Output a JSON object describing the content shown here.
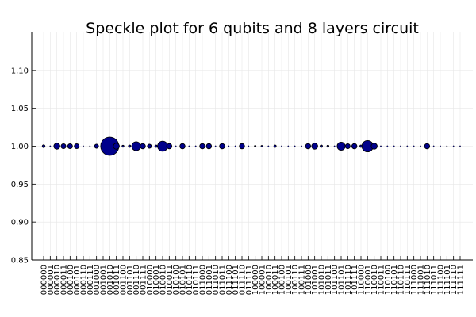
{
  "chart_data": {
    "type": "scatter",
    "title": "Speckle plot for 6 qubits and 8 layers circuit",
    "xlabel": "",
    "ylabel": "",
    "ylim": [
      0.85,
      1.15
    ],
    "yticks": [
      "0.85",
      "0.90",
      "0.95",
      "1.00",
      "1.05",
      "1.10"
    ],
    "ytick_values": [
      0.85,
      0.9,
      0.95,
      1.0,
      1.05,
      1.1
    ],
    "grid": true,
    "legend": "none",
    "marker_color": "#00008b",
    "marker_edge_color": "#000000",
    "categories": [
      "000000",
      "000001",
      "000010",
      "000011",
      "000100",
      "000101",
      "000110",
      "000111",
      "001000",
      "001001",
      "001010",
      "001011",
      "001100",
      "001101",
      "001110",
      "001111",
      "010000",
      "010001",
      "010010",
      "010011",
      "010100",
      "010101",
      "010110",
      "010111",
      "011000",
      "011001",
      "011010",
      "011011",
      "011100",
      "011101",
      "011110",
      "011111",
      "100000",
      "100001",
      "100010",
      "100011",
      "100100",
      "100101",
      "100110",
      "100111",
      "101000",
      "101001",
      "101010",
      "101011",
      "101100",
      "101101",
      "101110",
      "101111",
      "110000",
      "110001",
      "110010",
      "110011",
      "110100",
      "110101",
      "110110",
      "110111",
      "111000",
      "111001",
      "111010",
      "111011",
      "111100",
      "111101",
      "111110",
      "111111"
    ],
    "y": [
      1,
      1,
      1,
      1,
      1,
      1,
      1,
      1,
      1,
      1,
      1,
      1,
      1,
      1,
      1,
      1,
      1,
      1,
      1,
      1,
      1,
      1,
      1,
      1,
      1,
      1,
      1,
      1,
      1,
      1,
      1,
      1,
      1,
      1,
      1,
      1,
      1,
      1,
      1,
      1,
      1,
      1,
      1,
      1,
      1,
      1,
      1,
      1,
      1,
      1,
      1,
      1,
      1,
      1,
      1,
      1,
      1,
      1,
      1,
      1,
      1,
      1,
      1,
      1
    ],
    "marker_sizes": [
      0.7,
      0.3,
      1.5,
      1.2,
      1.2,
      1.2,
      0.1,
      0.1,
      1.0,
      0.1,
      4.5,
      1.5,
      0.5,
      0.6,
      2.2,
      1.3,
      1.0,
      0.6,
      2.5,
      1.3,
      0.1,
      1.3,
      0.1,
      0.3,
      1.3,
      1.3,
      0.1,
      1.3,
      0.1,
      0.3,
      1.3,
      0.2,
      0.4,
      0.4,
      0.3,
      0.6,
      0.1,
      0.2,
      0.1,
      0.3,
      1.3,
      1.5,
      0.6,
      0.5,
      0.3,
      2.0,
      1.2,
      1.3,
      0.6,
      2.8,
      1.5,
      0.3,
      0.3,
      0.3,
      0.2,
      0.1,
      0.1,
      0.1,
      1.3,
      0.1,
      0.1,
      0.2,
      0.1,
      0.1
    ]
  }
}
